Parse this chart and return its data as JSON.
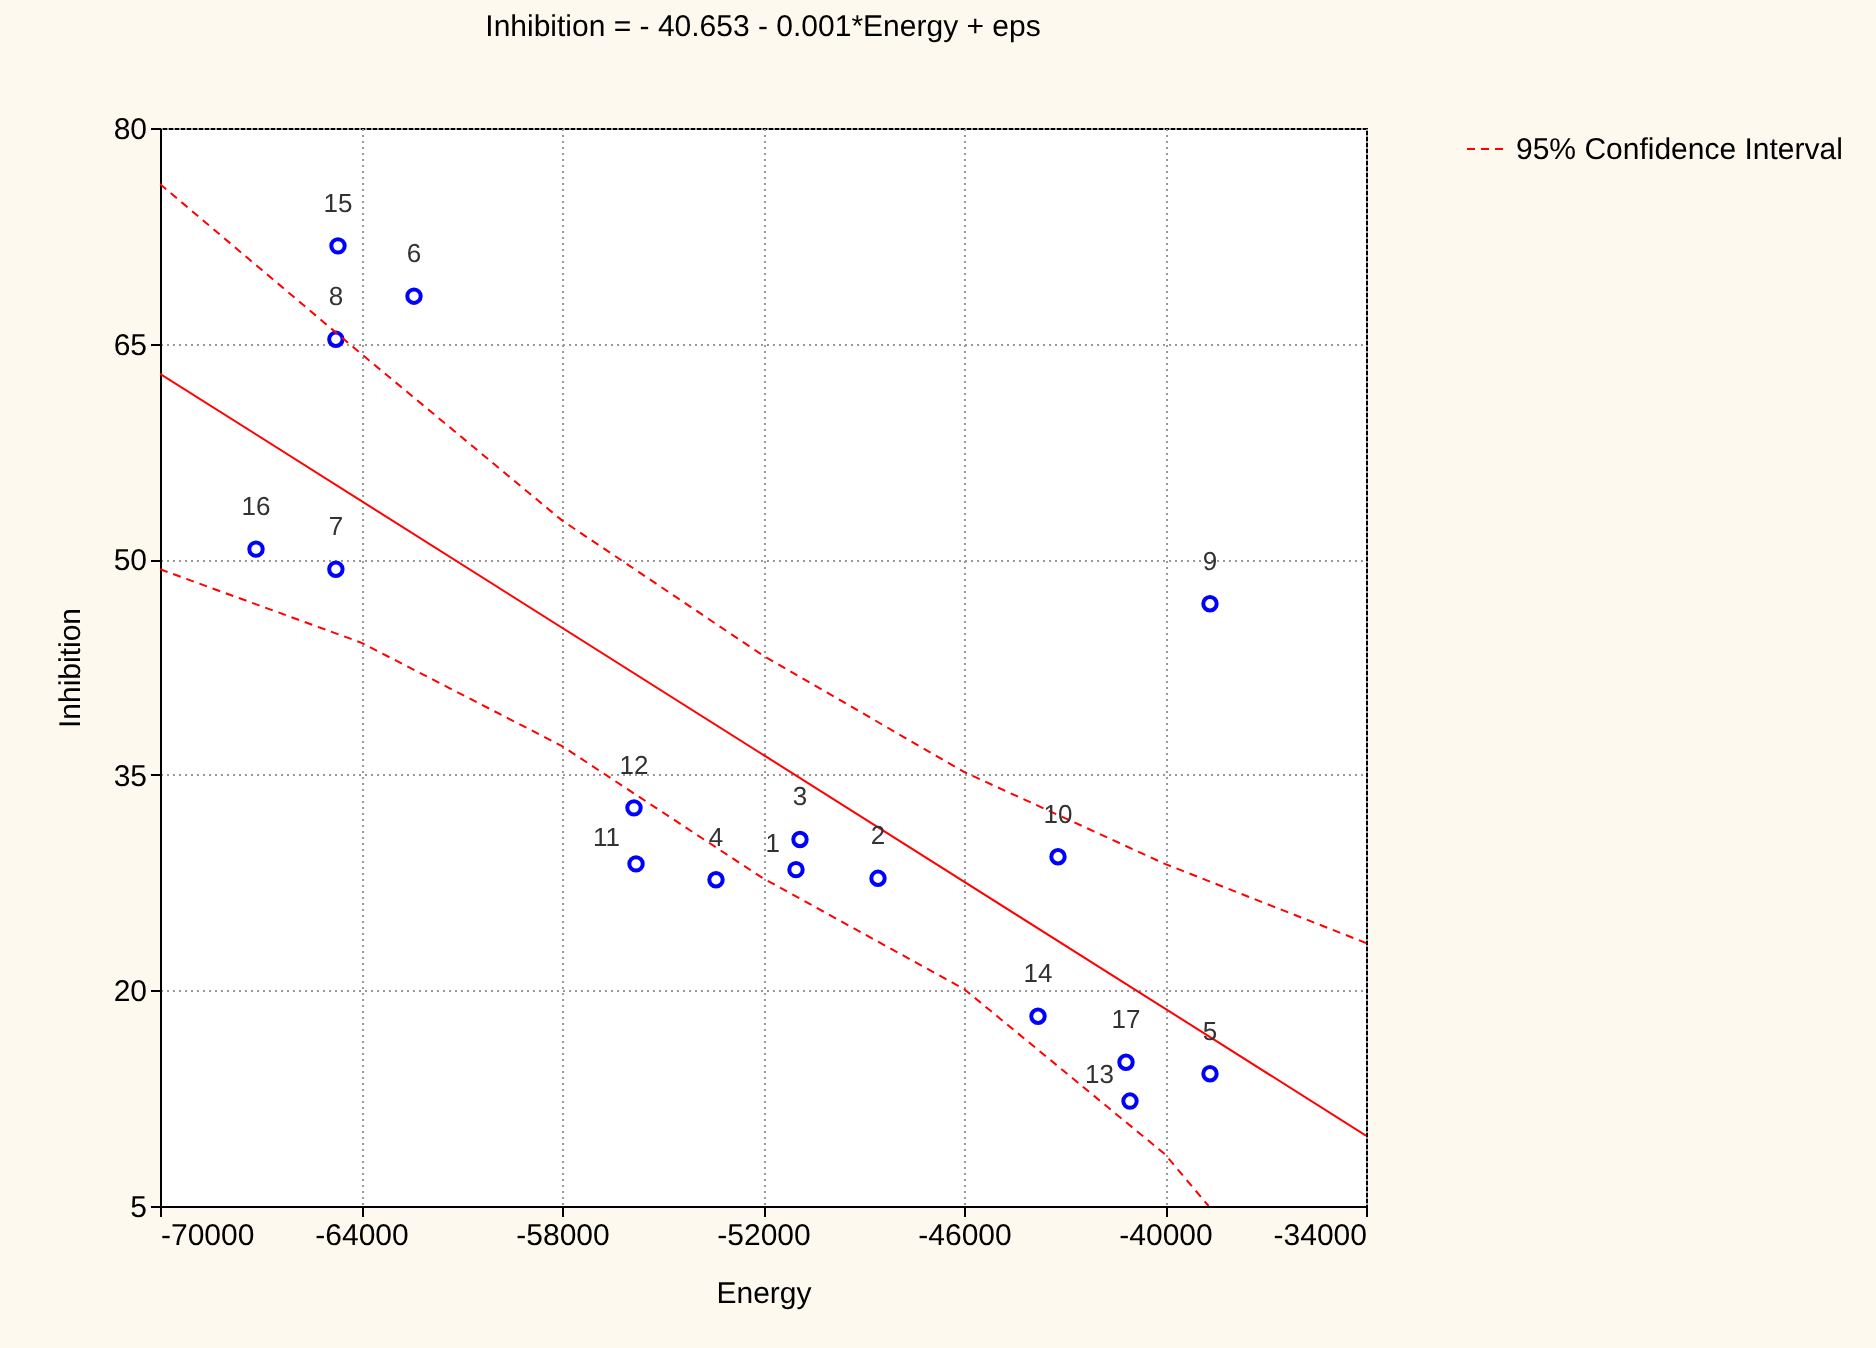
{
  "chart_data": {
    "type": "scatter",
    "title": "Inhibition = - 40.653 - 0.001*Energy + eps",
    "xlabel": "Energy",
    "ylabel": "Inhibition",
    "xlim": [
      -70000,
      -34000
    ],
    "xticks": [
      -70000,
      -64000,
      -58000,
      -52000,
      -46000,
      -40000,
      -34000
    ],
    "ylim": [
      5,
      80
    ],
    "yticks": [
      5,
      20,
      35,
      50,
      65,
      80
    ],
    "grid": true,
    "legend": "right",
    "series": [
      {
        "marker": "circle",
        "color": "#0000ff",
        "x": [
          -51015,
          -48567,
          -50896,
          -53403,
          -38657,
          -62418,
          -64750,
          -64750,
          -38657,
          -43194,
          -55790,
          -55851,
          -41045,
          -43791,
          -64687,
          -67134,
          -41164
        ],
        "values": [
          28.4,
          27.8,
          30.5,
          27.7,
          14.2,
          68.3,
          49.3,
          65.3,
          46.9,
          29.3,
          28.8,
          32.7,
          12.3,
          18.2,
          71.8,
          50.7,
          15.0
        ]
      },
      {
        "type": "line",
        "color": "#ff0000",
        "line_style": "solid",
        "x": [
          -70000,
          -34000
        ],
        "values": [
          62.9,
          9.9
        ]
      },
      {
        "type": "line",
        "color": "#ff0000",
        "line_style": "dashed",
        "x": [
          -70000,
          -64000,
          -58000,
          -52000,
          -46000,
          -40000,
          -34000
        ],
        "values": [
          76.1,
          64.3,
          52.7,
          43.3,
          35.2,
          28.8,
          23.3
        ]
      },
      {
        "type": "line",
        "name": "95% Confidence Interval",
        "color": "#ff0000",
        "line_style": "dashed",
        "x": [
          -70000,
          -64000,
          -58000,
          -52000,
          -46000,
          -40000,
          -38700
        ],
        "values": [
          49.3,
          44.2,
          37.0,
          27.8,
          20.1,
          8.6,
          5
        ]
      }
    ],
    "annotations": [
      {
        "text": "1",
        "x": -51015,
        "y": 28.4
      },
      {
        "text": "2",
        "x": -48567,
        "y": 27.8
      },
      {
        "text": "3",
        "x": -50896,
        "y": 30.5
      },
      {
        "text": "4",
        "x": -53403,
        "y": 27.7
      },
      {
        "text": "5",
        "x": -38657,
        "y": 14.2
      },
      {
        "text": "6",
        "x": -62418,
        "y": 68.3
      },
      {
        "text": "7",
        "x": -64750,
        "y": 49.3
      },
      {
        "text": "8",
        "x": -64750,
        "y": 65.3
      },
      {
        "text": "9",
        "x": -38657,
        "y": 46.9
      },
      {
        "text": "10",
        "x": -43194,
        "y": 29.3
      },
      {
        "text": "11",
        "x": -55790,
        "y": 28.8
      },
      {
        "text": "12",
        "x": -55851,
        "y": 32.7
      },
      {
        "text": "13",
        "x": -41045,
        "y": 12.3
      },
      {
        "text": "14",
        "x": -43791,
        "y": 18.2
      },
      {
        "text": "15",
        "x": -64687,
        "y": 71.8
      },
      {
        "text": "16",
        "x": -67134,
        "y": 50.7
      },
      {
        "text": "17",
        "x": -41164,
        "y": 15.0
      }
    ]
  }
}
